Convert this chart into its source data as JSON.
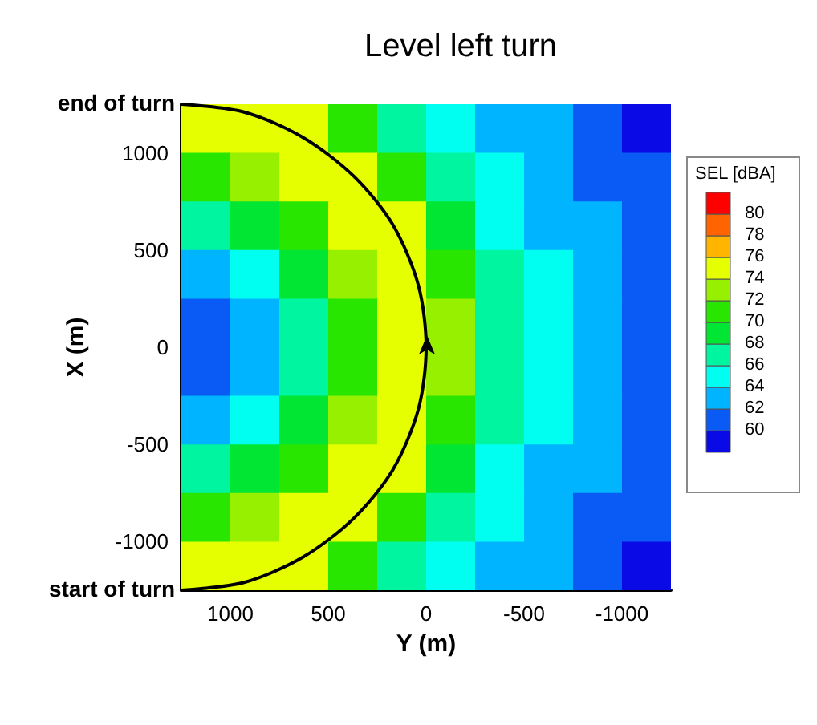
{
  "chart_data": {
    "type": "heatmap",
    "title": "Level left turn",
    "xlabel": "Y (m)",
    "ylabel": "X (m)",
    "legend_title": "SEL [dBA]",
    "x": [
      1125,
      875,
      625,
      375,
      125,
      -125,
      -375,
      -625,
      -875,
      -1125
    ],
    "y": [
      1125,
      875,
      625,
      375,
      125,
      -125,
      -375,
      -625,
      -875,
      -1125
    ],
    "cells": [
      [
        74.8,
        75.4,
        75.3,
        71.4,
        67.5,
        65.3,
        63.8,
        62.4,
        61.0,
        59.5
      ],
      [
        71.3,
        72.5,
        74.3,
        75.9,
        71.4,
        66.8,
        64.8,
        63.2,
        61.7,
        60.1
      ],
      [
        66.7,
        68.5,
        71.3,
        74.3,
        75.3,
        69.3,
        65.5,
        63.8,
        62.2,
        60.6
      ],
      [
        63.0,
        65.3,
        68.5,
        72.5,
        75.4,
        71.4,
        66.2,
        64.3,
        62.6,
        61.0
      ],
      [
        61.8,
        63.9,
        66.7,
        71.3,
        74.8,
        72.8,
        66.8,
        64.5,
        62.8,
        61.1
      ],
      [
        61.8,
        63.9,
        66.7,
        71.3,
        74.8,
        72.8,
        66.8,
        64.5,
        62.8,
        61.1
      ],
      [
        63.0,
        65.3,
        68.5,
        72.5,
        75.4,
        71.4,
        66.2,
        64.3,
        62.6,
        61.0
      ],
      [
        66.7,
        68.5,
        71.3,
        74.3,
        75.3,
        69.3,
        65.5,
        63.8,
        62.2,
        60.6
      ],
      [
        71.3,
        72.5,
        74.3,
        75.9,
        71.4,
        66.8,
        64.8,
        63.2,
        61.7,
        60.1
      ],
      [
        74.8,
        75.4,
        75.3,
        71.4,
        67.5,
        65.3,
        63.8,
        62.4,
        61.0,
        59.5
      ]
    ],
    "cticks": [
      60,
      62,
      64,
      66,
      68,
      70,
      72,
      74,
      76,
      78,
      80
    ],
    "clim": [
      58,
      82
    ],
    "colors": [
      "#0a0ae6",
      "#0a5af5",
      "#00b4ff",
      "#00fff0",
      "#00f5a0",
      "#00e632",
      "#28e600",
      "#96f000",
      "#e6ff00",
      "#ffb400",
      "#ff6400",
      "#ff0000"
    ],
    "series": [
      {
        "type": "line",
        "color": "#000000",
        "x": [
          1250,
          930,
          630,
          370,
          170,
          40,
          0,
          40,
          170,
          370,
          630,
          930,
          1250
        ],
        "values": [
          -1250,
          -1210,
          -1080,
          -880,
          -630,
          -320,
          0,
          320,
          630,
          880,
          1080,
          1210,
          1250
        ]
      }
    ],
    "annotations": [
      {
        "text": "end of turn",
        "x": 1250,
        "y": 1250
      },
      {
        "text": "start of turn",
        "x": 1250,
        "y": -1250
      }
    ],
    "xlim": [
      1250,
      -1250
    ],
    "ylim": [
      -1250,
      1250
    ],
    "xticks": [
      1000,
      500,
      0,
      -500,
      -1000
    ],
    "yticks": [
      -1000,
      -500,
      0,
      500,
      1000
    ]
  }
}
